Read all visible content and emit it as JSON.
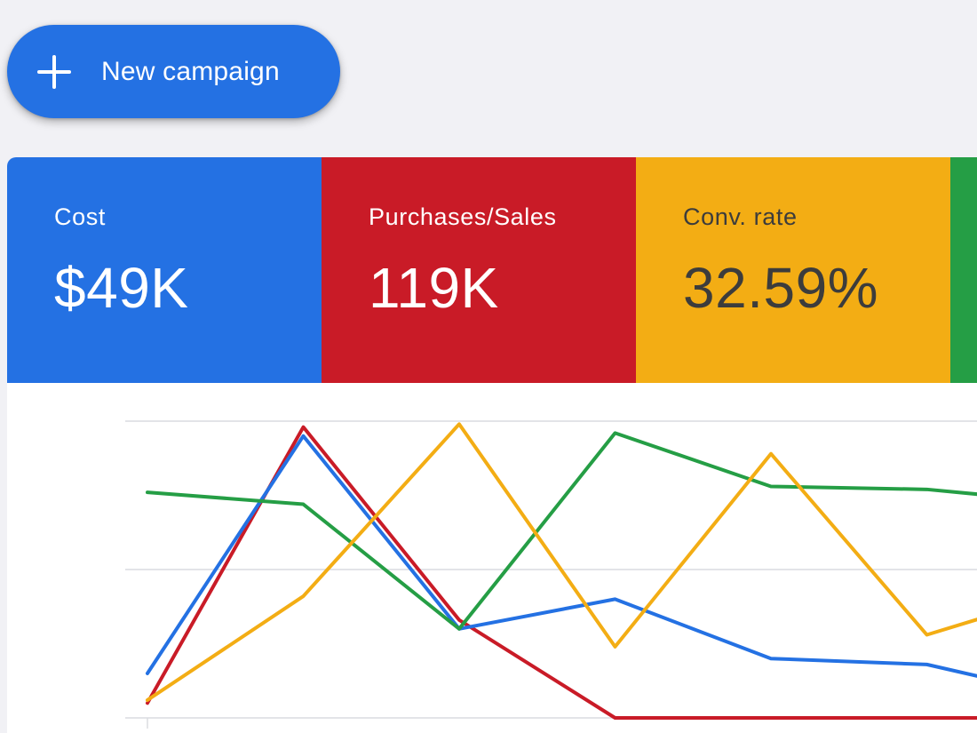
{
  "new_campaign": {
    "label": "New campaign",
    "icon": "plus-icon",
    "color": "#2471e3"
  },
  "metrics": [
    {
      "label": "Cost",
      "value": "$49K",
      "color": "#2471e3",
      "text_color": "#ffffff"
    },
    {
      "label": "Purchases/Sales",
      "value": "119K",
      "color": "#c91b27",
      "text_color": "#ffffff"
    },
    {
      "label": "Conv. rate",
      "value": "32.59%",
      "color": "#f3ad14",
      "text_color": "#3c3c3c"
    },
    {
      "label": "",
      "value": "",
      "color": "#259e45",
      "text_color": "#ffffff"
    }
  ],
  "chart_data": {
    "type": "line",
    "grid": true,
    "y_range": [
      0,
      100
    ],
    "x": [
      1,
      2,
      3,
      4,
      5,
      6,
      7
    ],
    "series": [
      {
        "color": "#c91b27",
        "values": [
          5,
          98,
          33,
          0,
          0,
          0,
          0
        ]
      },
      {
        "color": "#2471e3",
        "values": [
          15,
          95,
          30,
          40,
          20,
          18,
          6
        ]
      },
      {
        "color": "#259e45",
        "values": [
          76,
          72,
          30,
          96,
          78,
          77,
          72
        ]
      },
      {
        "color": "#f3ad14",
        "values": [
          6,
          41,
          99,
          24,
          89,
          28,
          44
        ]
      }
    ]
  }
}
